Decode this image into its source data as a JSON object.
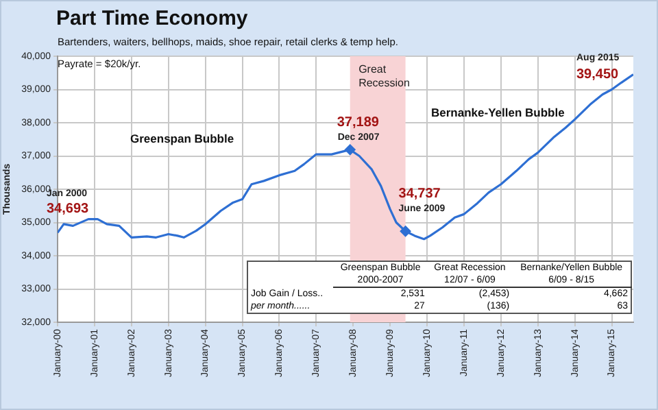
{
  "chart_data": {
    "type": "line",
    "title": "Part Time Economy",
    "subtitle": "Bartenders, waiters, bellhops, maids, shoe repair, retail clerks & temp help.",
    "ylabel": "Thousands",
    "series": [
      {
        "color": "#2e6fd3",
        "marker": "none",
        "x": [
          "2000-01",
          "2000-03",
          "2000-06",
          "2000-11",
          "2001-02",
          "2001-05",
          "2001-09",
          "2002-01",
          "2002-06",
          "2002-09",
          "2003-01",
          "2003-04",
          "2003-06",
          "2003-10",
          "2004-01",
          "2004-06",
          "2004-10",
          "2005-01",
          "2005-04",
          "2005-08",
          "2006-01",
          "2006-06",
          "2006-09",
          "2007-01",
          "2007-06",
          "2007-12",
          "2008-03",
          "2008-07",
          "2008-10",
          "2009-01",
          "2009-03",
          "2009-06",
          "2009-09",
          "2009-12",
          "2010-02",
          "2010-06",
          "2010-10",
          "2011-01",
          "2011-05",
          "2011-09",
          "2012-01",
          "2012-06",
          "2012-10",
          "2013-01",
          "2013-06",
          "2013-10",
          "2014-01",
          "2014-06",
          "2014-10",
          "2015-01",
          "2015-04",
          "2015-08"
        ],
        "values": [
          34693,
          34950,
          34900,
          35100,
          35100,
          34950,
          34900,
          34550,
          34580,
          34550,
          34650,
          34600,
          34550,
          34750,
          34950,
          35350,
          35600,
          35700,
          36150,
          36250,
          36420,
          36550,
          36750,
          37050,
          37050,
          37189,
          37000,
          36600,
          36100,
          35400,
          35000,
          34737,
          34600,
          34500,
          34600,
          34850,
          35150,
          35250,
          35550,
          35900,
          36150,
          36550,
          36900,
          37100,
          37550,
          37850,
          38100,
          38550,
          38850,
          39000,
          39200,
          39450
        ]
      },
      {
        "type": "scatter",
        "color": "#2e6fd3",
        "marker": "diamond",
        "x": [
          "2007-12",
          "2009-06"
        ],
        "values": [
          37189,
          34737
        ]
      }
    ],
    "xlim": [
      "2000-01",
      "2015-08"
    ],
    "xticks": [
      {
        "value": "2000-01",
        "label": "January-00"
      },
      {
        "value": "2001-01",
        "label": "January-01"
      },
      {
        "value": "2002-01",
        "label": "January-02"
      },
      {
        "value": "2003-01",
        "label": "January-03"
      },
      {
        "value": "2004-01",
        "label": "January-04"
      },
      {
        "value": "2005-01",
        "label": "January-05"
      },
      {
        "value": "2006-01",
        "label": "January-06"
      },
      {
        "value": "2007-01",
        "label": "January-07"
      },
      {
        "value": "2008-01",
        "label": "January-08"
      },
      {
        "value": "2009-01",
        "label": "January-09"
      },
      {
        "value": "2010-01",
        "label": "January-10"
      },
      {
        "value": "2011-01",
        "label": "January-11"
      },
      {
        "value": "2012-01",
        "label": "January-12"
      },
      {
        "value": "2013-01",
        "label": "January-13"
      },
      {
        "value": "2014-01",
        "label": "January-14"
      },
      {
        "value": "2015-01",
        "label": "January-15"
      }
    ],
    "ylim": [
      32000,
      40000
    ],
    "yticks": [
      {
        "value": 32000,
        "label": "32,000"
      },
      {
        "value": 33000,
        "label": "33,000"
      },
      {
        "value": 34000,
        "label": "34,000"
      },
      {
        "value": 35000,
        "label": "35,000"
      },
      {
        "value": 36000,
        "label": "36,000"
      },
      {
        "value": 37000,
        "label": "37,000"
      },
      {
        "value": 38000,
        "label": "38,000"
      },
      {
        "value": 39000,
        "label": "39,000"
      },
      {
        "value": 40000,
        "label": "40,000"
      }
    ],
    "grid": true,
    "legend": false,
    "bands": [
      {
        "axis": "x",
        "from": "2007-12",
        "to": "2009-06",
        "label": "Great Recession",
        "color": "#f8d3d5"
      }
    ],
    "annotations": [
      {
        "text": "34,693",
        "x": "2000-01",
        "y": 34693
      },
      {
        "text": "37,189",
        "x": "2007-12",
        "y": 37189
      },
      {
        "text": "Dec 2007",
        "x": "2007-12",
        "y": 37189
      },
      {
        "text": "34,737",
        "x": "2009-06",
        "y": 34737
      },
      {
        "text": "June 2009",
        "x": "2009-06",
        "y": 34737
      },
      {
        "text": "Aug 2015",
        "x": "2015-08",
        "y": 39450
      },
      {
        "text": "39,450",
        "x": "2015-08",
        "y": 39450
      },
      "Payrate = $20k/yr.",
      "Greenspan Bubble",
      "Bernanke-Yellen Bubble",
      "Jan 2000",
      "Greenspan Bubble",
      "Great Recession",
      "Bernanke/Yellen Bubble",
      "2000-2007",
      "12/07 - 6/09",
      "6/09 - 8/15",
      "Job Gain / Loss..",
      "2,531",
      "(2,453)",
      "4,662",
      "per month......",
      "27",
      "(136)",
      "63"
    ]
  }
}
